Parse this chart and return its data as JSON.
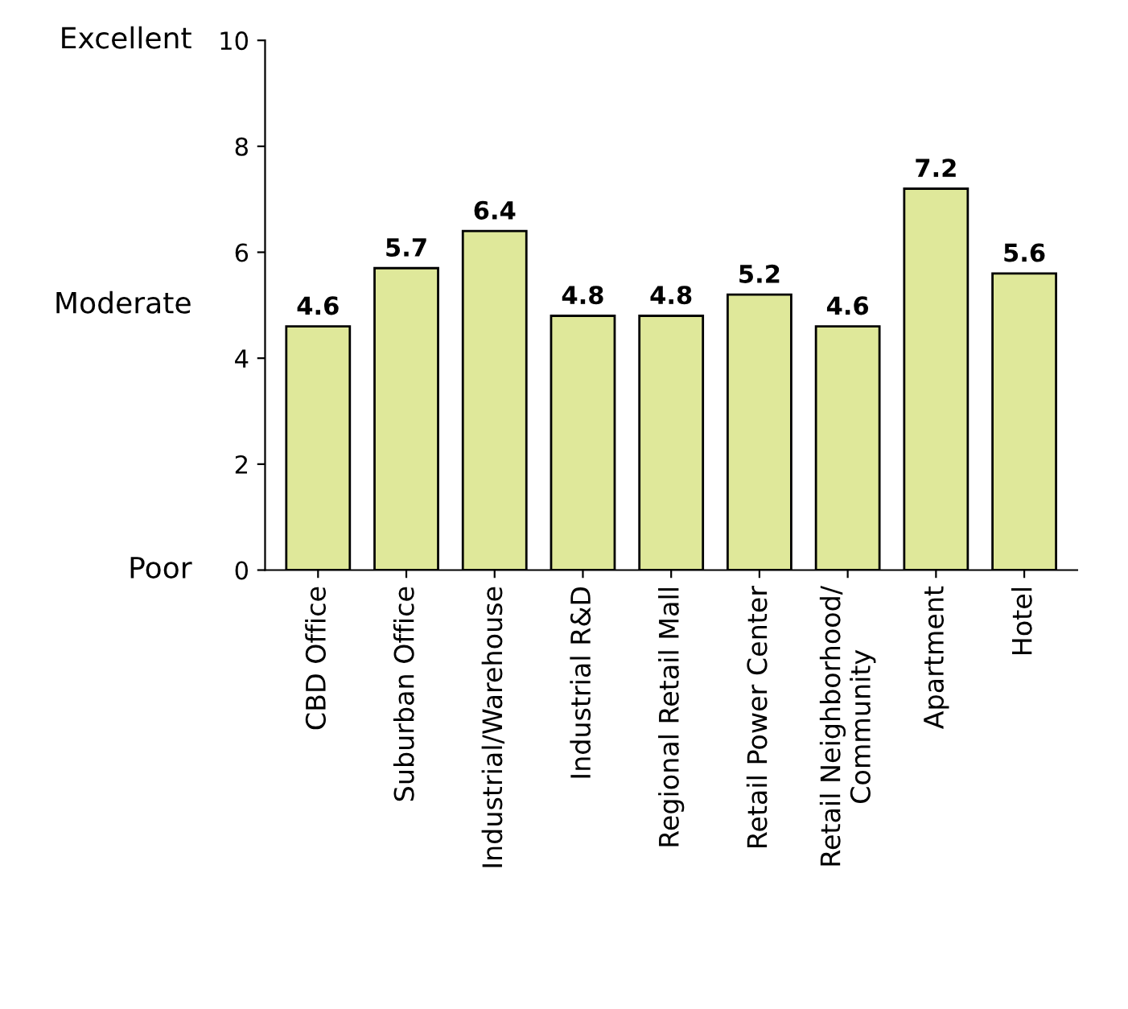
{
  "chart_data": {
    "type": "bar",
    "categories": [
      "CBD Office",
      "Suburban Office",
      "Industrial/Warehouse",
      "Industrial R&D",
      "Regional Retail Mall",
      "Retail Power Center",
      "Retail Neighborhood/\nCommunity",
      "Apartment",
      "Hotel"
    ],
    "values": [
      4.6,
      5.7,
      6.4,
      4.8,
      4.8,
      5.2,
      4.6,
      7.2,
      5.6
    ],
    "color": "#dfe89a",
    "ylim": [
      0,
      10
    ],
    "yticks": [
      0,
      2,
      4,
      6,
      8,
      10
    ],
    "annotations": [
      "Excellent",
      "Moderate",
      "Poor"
    ],
    "data_labels": true,
    "grid": false,
    "legend": false
  }
}
